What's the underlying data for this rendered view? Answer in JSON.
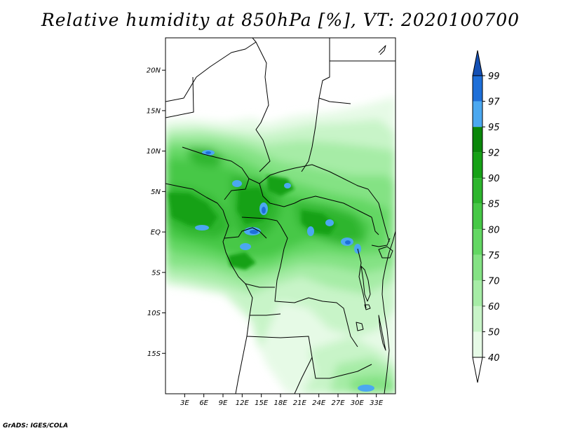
{
  "title": "Relative humidity at 850hPa [%], VT: 2020100700",
  "credit": "GrADS: IGES/COLA",
  "map": {
    "lon_range": [
      0,
      36
    ],
    "lat_range": [
      -20,
      24
    ],
    "lat_ticks": [
      {
        "value": 20,
        "label": "20N"
      },
      {
        "value": 15,
        "label": "15N"
      },
      {
        "value": 10,
        "label": "10N"
      },
      {
        "value": 5,
        "label": "5N"
      },
      {
        "value": 0,
        "label": "EQ"
      },
      {
        "value": -5,
        "label": "5S"
      },
      {
        "value": -10,
        "label": "10S"
      },
      {
        "value": -15,
        "label": "15S"
      }
    ],
    "lon_ticks": [
      {
        "value": 3,
        "label": "3E"
      },
      {
        "value": 6,
        "label": "6E"
      },
      {
        "value": 9,
        "label": "9E"
      },
      {
        "value": 12,
        "label": "12E"
      },
      {
        "value": 15,
        "label": "15E"
      },
      {
        "value": 18,
        "label": "18E"
      },
      {
        "value": 21,
        "label": "21E"
      },
      {
        "value": 24,
        "label": "24E"
      },
      {
        "value": 27,
        "label": "27E"
      },
      {
        "value": 30,
        "label": "30E"
      },
      {
        "value": 33,
        "label": "33E"
      }
    ]
  },
  "colorbar": {
    "levels": [
      "40",
      "50",
      "60",
      "70",
      "75",
      "80",
      "85",
      "90",
      "92",
      "95",
      "97",
      "99"
    ],
    "colors": [
      "#ffffff",
      "#e6fae6",
      "#c8f4c8",
      "#a6eca6",
      "#84e284",
      "#63d763",
      "#46c846",
      "#2db52d",
      "#16a116",
      "#0a870a",
      "#4ba8f0",
      "#1e6fd8",
      "#1450b4"
    ]
  }
}
